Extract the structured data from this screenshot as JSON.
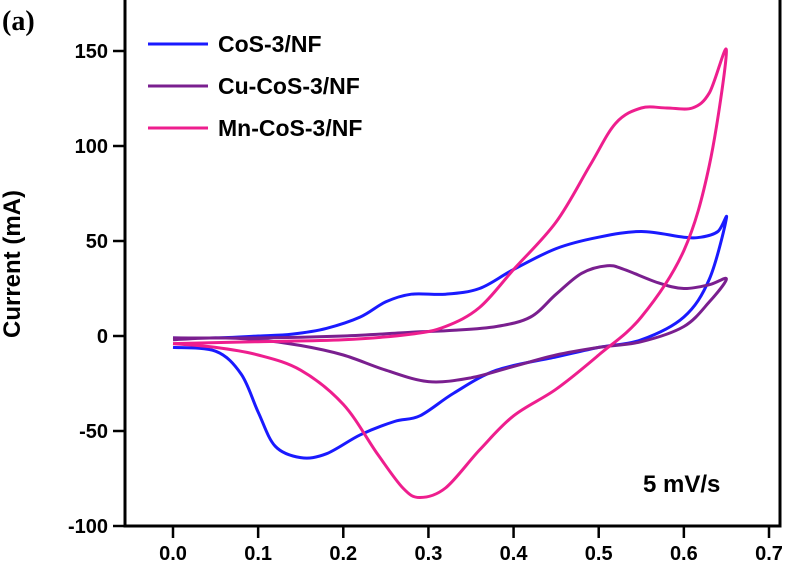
{
  "chart_data": {
    "type": "line",
    "panel_label": "(a)",
    "title": "",
    "xlabel": "",
    "ylabel": "Current (mA)",
    "xlim": [
      0.0,
      0.7
    ],
    "ylim": [
      -100,
      160
    ],
    "x_ticks": [
      "0.0",
      "0.1",
      "0.2",
      "0.3",
      "0.4",
      "0.5",
      "0.6",
      "0.7"
    ],
    "y_ticks": [
      "-100",
      "-50",
      "0",
      "50",
      "100",
      "150"
    ],
    "annotation": "5 mV/s",
    "legend_position": "top-left",
    "grid": false,
    "series": [
      {
        "name": "CoS-3/NF",
        "color": "#1a1aff",
        "points": [
          [
            0.0,
            -6
          ],
          [
            0.05,
            -8
          ],
          [
            0.08,
            -20
          ],
          [
            0.1,
            -40
          ],
          [
            0.12,
            -58
          ],
          [
            0.15,
            -64
          ],
          [
            0.18,
            -62
          ],
          [
            0.22,
            -52
          ],
          [
            0.26,
            -45
          ],
          [
            0.29,
            -42
          ],
          [
            0.33,
            -30
          ],
          [
            0.38,
            -18
          ],
          [
            0.45,
            -11
          ],
          [
            0.5,
            -6
          ],
          [
            0.55,
            -2
          ],
          [
            0.6,
            10
          ],
          [
            0.63,
            30
          ],
          [
            0.65,
            62
          ],
          [
            0.64,
            55
          ],
          [
            0.62,
            52
          ],
          [
            0.6,
            52
          ],
          [
            0.55,
            55
          ],
          [
            0.5,
            52
          ],
          [
            0.45,
            46
          ],
          [
            0.4,
            35
          ],
          [
            0.36,
            25
          ],
          [
            0.32,
            22
          ],
          [
            0.28,
            22
          ],
          [
            0.25,
            18
          ],
          [
            0.22,
            10
          ],
          [
            0.18,
            4
          ],
          [
            0.14,
            1
          ],
          [
            0.1,
            0
          ],
          [
            0.05,
            -1
          ],
          [
            0.0,
            -1
          ]
        ]
      },
      {
        "name": "Cu-CoS-3/NF",
        "color": "#7a1f8f",
        "points": [
          [
            0.0,
            -2
          ],
          [
            0.05,
            -1
          ],
          [
            0.1,
            -2
          ],
          [
            0.15,
            -5
          ],
          [
            0.2,
            -10
          ],
          [
            0.25,
            -18
          ],
          [
            0.3,
            -24
          ],
          [
            0.35,
            -22
          ],
          [
            0.4,
            -16
          ],
          [
            0.45,
            -10
          ],
          [
            0.5,
            -6
          ],
          [
            0.55,
            -3
          ],
          [
            0.6,
            5
          ],
          [
            0.63,
            18
          ],
          [
            0.65,
            30
          ],
          [
            0.63,
            27
          ],
          [
            0.6,
            25
          ],
          [
            0.57,
            28
          ],
          [
            0.53,
            35
          ],
          [
            0.51,
            37
          ],
          [
            0.48,
            33
          ],
          [
            0.45,
            22
          ],
          [
            0.42,
            10
          ],
          [
            0.38,
            5
          ],
          [
            0.33,
            3
          ],
          [
            0.28,
            2
          ],
          [
            0.2,
            0
          ],
          [
            0.1,
            -1
          ],
          [
            0.0,
            -1
          ]
        ]
      },
      {
        "name": "Mn-CoS-3/NF",
        "color": "#ee1e8e",
        "points": [
          [
            0.0,
            -4
          ],
          [
            0.05,
            -6
          ],
          [
            0.1,
            -10
          ],
          [
            0.15,
            -18
          ],
          [
            0.2,
            -36
          ],
          [
            0.24,
            -62
          ],
          [
            0.27,
            -80
          ],
          [
            0.29,
            -85
          ],
          [
            0.32,
            -80
          ],
          [
            0.36,
            -60
          ],
          [
            0.4,
            -42
          ],
          [
            0.45,
            -28
          ],
          [
            0.5,
            -10
          ],
          [
            0.55,
            10
          ],
          [
            0.6,
            45
          ],
          [
            0.63,
            90
          ],
          [
            0.65,
            150
          ],
          [
            0.63,
            128
          ],
          [
            0.61,
            120
          ],
          [
            0.58,
            120
          ],
          [
            0.55,
            120
          ],
          [
            0.52,
            112
          ],
          [
            0.49,
            90
          ],
          [
            0.45,
            60
          ],
          [
            0.4,
            35
          ],
          [
            0.36,
            15
          ],
          [
            0.32,
            5
          ],
          [
            0.28,
            1
          ],
          [
            0.2,
            -2
          ],
          [
            0.1,
            -3
          ],
          [
            0.0,
            -4
          ]
        ]
      }
    ]
  }
}
